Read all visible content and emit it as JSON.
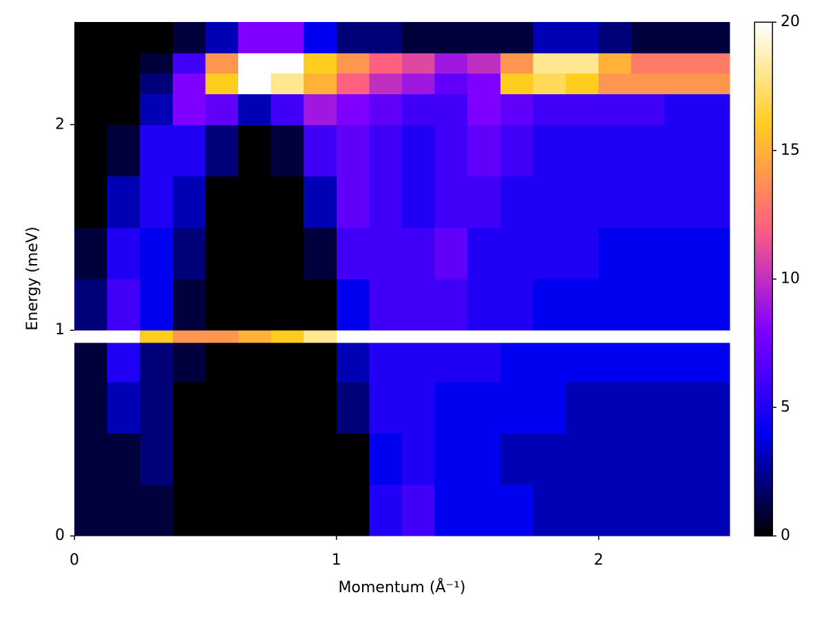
{
  "chart_data": {
    "type": "heatmap",
    "x_label": "Momentum (Å⁻¹)",
    "y_label": "Energy (meV)",
    "x_bins": [
      0,
      0.125,
      0.25,
      0.375,
      0.5,
      0.625,
      0.75,
      0.875,
      1,
      1.125,
      1.25,
      1.375,
      1.5,
      1.625,
      1.75,
      1.875,
      2,
      2.125,
      2.25,
      2.375,
      2.5
    ],
    "y_bins": [
      0,
      0.25,
      0.5,
      0.75,
      0.94,
      1.0,
      1.25,
      1.5,
      1.75,
      2.0,
      2.15,
      2.25,
      2.35,
      2.5
    ],
    "z": [
      [
        1,
        1,
        1,
        0,
        0,
        0,
        0,
        0,
        0,
        5,
        6,
        4,
        4,
        4,
        3,
        3,
        3,
        3,
        3,
        3
      ],
      [
        1,
        1,
        2,
        0,
        0,
        0,
        0,
        0,
        0,
        4,
        5,
        4,
        4,
        3,
        3,
        3,
        3,
        3,
        3,
        3
      ],
      [
        1,
        3,
        2,
        0,
        0,
        0,
        0,
        0,
        2,
        5,
        5,
        4,
        4,
        4,
        4,
        3,
        3,
        3,
        3,
        3
      ],
      [
        1,
        5,
        2,
        1,
        0,
        0,
        0,
        0,
        3,
        5,
        5,
        5,
        5,
        4,
        4,
        4,
        4,
        4,
        4,
        4
      ],
      [
        20,
        20,
        16,
        14,
        14,
        15,
        16,
        18,
        20,
        20,
        20,
        20,
        20,
        20,
        20,
        20,
        20,
        20,
        20,
        20
      ],
      [
        2,
        6,
        4,
        1,
        0,
        0,
        0,
        0,
        4,
        6,
        6,
        6,
        5,
        5,
        4,
        4,
        4,
        4,
        4,
        4
      ],
      [
        1,
        5,
        4,
        2,
        0,
        0,
        0,
        1,
        6,
        6,
        6,
        7,
        5,
        5,
        5,
        5,
        4,
        4,
        4,
        4
      ],
      [
        0,
        3,
        5,
        3,
        0,
        0,
        0,
        3,
        7,
        6,
        5,
        6,
        6,
        5,
        5,
        5,
        5,
        5,
        5,
        5
      ],
      [
        0,
        1,
        5,
        5,
        2,
        0,
        1,
        6,
        7,
        6,
        5,
        6,
        7,
        6,
        5,
        5,
        5,
        5,
        5,
        5
      ],
      [
        0,
        0,
        3,
        8,
        7,
        3,
        6,
        9,
        8,
        7,
        6,
        6,
        8,
        7,
        6,
        6,
        6,
        6,
        5,
        5
      ],
      [
        0,
        0,
        2,
        8,
        16,
        20,
        18,
        15,
        12,
        10,
        9,
        7,
        8,
        16,
        17,
        16,
        14,
        14,
        14,
        14
      ],
      [
        0,
        0,
        1,
        6,
        14,
        20,
        20,
        16,
        14,
        12,
        11,
        9,
        10,
        14,
        18,
        18,
        15,
        13,
        13,
        13
      ],
      [
        0,
        0,
        0,
        1,
        3,
        8,
        8,
        4,
        2,
        2,
        1,
        1,
        1,
        1,
        3,
        3,
        2,
        1,
        1,
        1
      ]
    ],
    "xlim": [
      0,
      2.5
    ],
    "ylim": [
      0,
      2.5
    ],
    "xticks": [
      0,
      1,
      2
    ],
    "yticks": [
      0,
      1,
      2
    ],
    "zlim": [
      0,
      20
    ],
    "colorbar_ticks": [
      0,
      5,
      10,
      15,
      20
    ],
    "colormap": [
      "#000000",
      "#0000f0",
      "#8000ff",
      "#ff6080",
      "#ffcc20",
      "#ffffff"
    ]
  }
}
